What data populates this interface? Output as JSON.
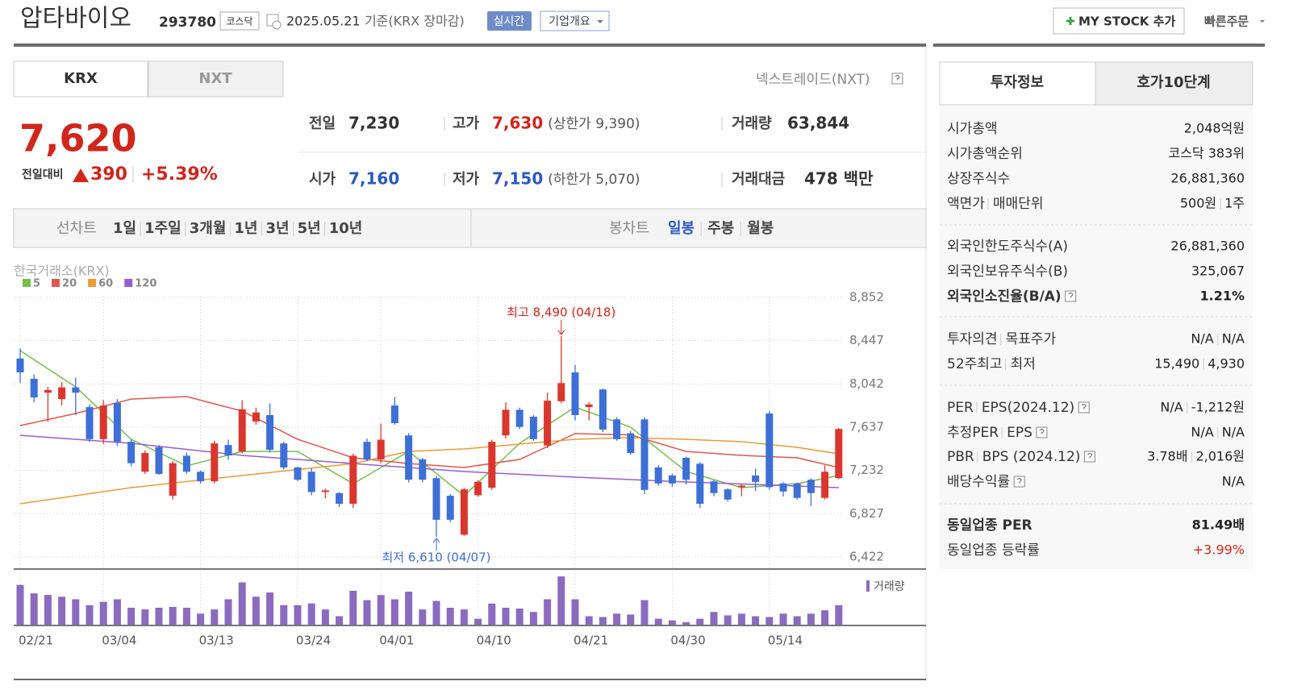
{
  "header": {
    "name": "압타바이오",
    "code": "293780",
    "market": "코스닥",
    "date": "2025.05.21",
    "basis": "기준(KRX 장마감)",
    "realtime": "실시간",
    "company_info": "기업개요",
    "my_stock": "MY STOCK 추가",
    "quick_order": "빠른주문"
  },
  "exchange_tabs": [
    "KRX",
    "NXT"
  ],
  "nxt_link": "넥스트레이드(NXT)",
  "quote": {
    "price": "7,620",
    "change_label": "전일대비",
    "change": "390",
    "change_rate": "+5.39%",
    "items": [
      {
        "label": "전일",
        "value": "7,230"
      },
      {
        "label": "고가",
        "value": "7,630",
        "note": "(상한가 9,390)"
      },
      {
        "label": "거래량",
        "value": "63,844"
      },
      {
        "label": "시가",
        "value": "7,160"
      },
      {
        "label": "저가",
        "value": "7,150",
        "note": "(하한가 5,070)"
      },
      {
        "label": "거래대금",
        "value": "478 백만"
      }
    ]
  },
  "period": {
    "line_label": "선차트",
    "line_options": [
      "1일",
      "1주일",
      "3개월",
      "1년",
      "3년",
      "5년",
      "10년"
    ],
    "candle_label": "봉차트",
    "candle_options": [
      "일봉",
      "주봉",
      "월봉"
    ]
  },
  "chart_data": {
    "type": "candlestick",
    "source": "한국거래소(KRX)",
    "categories": [
      "02/21",
      null,
      null,
      null,
      null,
      null,
      "03/04",
      null,
      null,
      null,
      null,
      null,
      null,
      "03/13",
      null,
      null,
      null,
      null,
      null,
      null,
      "03/24",
      null,
      null,
      null,
      null,
      null,
      "04/01",
      null,
      null,
      null,
      null,
      null,
      null,
      "04/10",
      null,
      null,
      null,
      null,
      null,
      null,
      "04/21",
      null,
      null,
      null,
      null,
      null,
      null,
      "04/30",
      null,
      null,
      null,
      null,
      null,
      null,
      "05/14",
      null,
      null,
      null,
      null,
      null
    ],
    "ohlc": [
      [
        8280,
        8375,
        8050,
        8150
      ],
      [
        8090,
        8130,
        7870,
        7915
      ],
      [
        7960,
        8015,
        7690,
        7985
      ],
      [
        7900,
        8060,
        7840,
        8010
      ],
      [
        8010,
        8100,
        7750,
        7960
      ],
      [
        7825,
        7850,
        7500,
        7525
      ],
      [
        7525,
        7890,
        7480,
        7840
      ],
      [
        7865,
        7900,
        7460,
        7500
      ],
      [
        7500,
        7520,
        7270,
        7300
      ],
      [
        7220,
        7420,
        7200,
        7395
      ],
      [
        7450,
        7470,
        7190,
        7200
      ],
      [
        6995,
        7320,
        6960,
        7300
      ],
      [
        7370,
        7400,
        7200,
        7220
      ],
      [
        7220,
        7230,
        7110,
        7130
      ],
      [
        7130,
        7510,
        7110,
        7485
      ],
      [
        7470,
        7520,
        7330,
        7372
      ],
      [
        7410,
        7890,
        7390,
        7805
      ],
      [
        7690,
        7820,
        7660,
        7775
      ],
      [
        7750,
        7860,
        7400,
        7425
      ],
      [
        7485,
        7500,
        7240,
        7260
      ],
      [
        7260,
        7270,
        7130,
        7145
      ],
      [
        7220,
        7250,
        7000,
        7030
      ],
      [
        7030,
        7060,
        6970,
        7045
      ],
      [
        7020,
        7030,
        6890,
        6920
      ],
      [
        6920,
        7390,
        6880,
        7370
      ],
      [
        7500,
        7530,
        7320,
        7335
      ],
      [
        7335,
        7670,
        7300,
        7520
      ],
      [
        7840,
        7920,
        7660,
        7675
      ],
      [
        7560,
        7580,
        7120,
        7145
      ],
      [
        7335,
        7350,
        7120,
        7145
      ],
      [
        7160,
        7180,
        6610,
        6770
      ],
      [
        6995,
        7010,
        6750,
        6770
      ],
      [
        6630,
        7070,
        6620,
        7055
      ],
      [
        7000,
        7140,
        6985,
        7125
      ],
      [
        7070,
        7520,
        7050,
        7500
      ],
      [
        7560,
        7870,
        7530,
        7800
      ],
      [
        7800,
        7820,
        7620,
        7640
      ],
      [
        7735,
        7750,
        7510,
        7525
      ],
      [
        7465,
        7960,
        7440,
        7885
      ],
      [
        7880,
        8490,
        7860,
        8050
      ],
      [
        8150,
        8220,
        7700,
        7750
      ],
      [
        7825,
        7870,
        7700,
        7850
      ],
      [
        7990,
        8000,
        7590,
        7615
      ],
      [
        7710,
        7730,
        7510,
        7525
      ],
      [
        7580,
        7600,
        7380,
        7395
      ],
      [
        7710,
        7730,
        7010,
        7050
      ],
      [
        7260,
        7280,
        7090,
        7110
      ],
      [
        7185,
        7200,
        7080,
        7110
      ],
      [
        7350,
        7360,
        7100,
        7145
      ],
      [
        7295,
        7310,
        6880,
        6920
      ],
      [
        7130,
        7140,
        6990,
        7020
      ],
      [
        7055,
        7065,
        6940,
        6960
      ],
      [
        7075,
        7100,
        6990,
        7090
      ],
      [
        7185,
        7250,
        7040,
        7125
      ],
      [
        7765,
        7790,
        7050,
        7075
      ],
      [
        7110,
        7120,
        6990,
        7035
      ],
      [
        7110,
        7120,
        6960,
        6975
      ],
      [
        7145,
        7160,
        6900,
        7020
      ],
      [
        6975,
        7280,
        6960,
        7220
      ],
      [
        7160,
        7630,
        7150,
        7620
      ]
    ],
    "up_color": "#d9372d",
    "down_color": "#3d6fd6",
    "ylim": [
      6422,
      8852
    ],
    "yticks": [
      {
        "value": 8852,
        "label": "8,852"
      },
      {
        "value": 8447,
        "label": "8,447"
      },
      {
        "value": 8042,
        "label": "8,042"
      },
      {
        "value": 7637,
        "label": "7,637"
      },
      {
        "value": 7232,
        "label": "7,232"
      },
      {
        "value": 6827,
        "label": "6,827"
      },
      {
        "value": 6422,
        "label": "6,422"
      }
    ],
    "grid": true,
    "ma": [
      {
        "name": "5",
        "color": "#74bf4e",
        "x": [
          0,
          4,
          8,
          12,
          16,
          20,
          24,
          28,
          32,
          36,
          40,
          44,
          48,
          52,
          56,
          59
        ],
        "values": [
          8354,
          8014,
          7524,
          7275,
          7410,
          7410,
          7108,
          7410,
          6995,
          7486,
          7826,
          7637,
          7222,
          7071,
          7108,
          7184
        ]
      },
      {
        "name": "20",
        "color": "#e2574c",
        "x": [
          0,
          4,
          8,
          12,
          16,
          20,
          24,
          28,
          32,
          36,
          40,
          44,
          48,
          52,
          56,
          59
        ],
        "values": [
          7652,
          7765,
          7900,
          7924,
          7788,
          7524,
          7350,
          7297,
          7260,
          7335,
          7577,
          7565,
          7410,
          7373,
          7350,
          7260
        ]
      },
      {
        "name": "60",
        "color": "#eb9a35",
        "x": [
          0,
          8,
          16,
          24,
          28,
          32,
          40,
          44,
          48,
          52,
          56,
          59
        ],
        "values": [
          6920,
          7071,
          7184,
          7297,
          7410,
          7433,
          7524,
          7539,
          7524,
          7501,
          7448,
          7388
        ]
      },
      {
        "name": "120",
        "color": "#9a5ccf",
        "x": [
          0,
          8,
          16,
          24,
          32,
          40,
          48,
          56,
          59
        ],
        "values": [
          7561,
          7486,
          7373,
          7297,
          7222,
          7169,
          7124,
          7086,
          7071
        ]
      }
    ],
    "annotations": [
      {
        "text": "최고 8,490 (04/18)",
        "value": 8490,
        "color": "#d0261b"
      },
      {
        "text": "최저 6,610 (04/07)",
        "value": 6610,
        "color": "#3d6fd6"
      }
    ],
    "volume": {
      "label": "거래량",
      "color": "#8a6bbf",
      "ylim": [
        0,
        60
      ],
      "values": [
        47,
        37,
        35,
        33,
        30,
        23,
        27,
        30,
        20,
        18,
        20,
        21,
        20,
        13,
        18,
        30,
        50,
        33,
        38,
        23,
        23,
        25,
        18,
        10,
        40,
        29,
        35,
        30,
        39,
        18,
        28,
        20,
        18,
        7,
        25,
        20,
        19,
        15,
        30,
        57,
        30,
        10,
        9,
        13,
        12,
        29,
        7,
        5,
        3,
        7,
        15,
        11,
        13,
        10,
        9,
        13,
        10,
        13,
        17,
        23
      ]
    }
  },
  "sidebar": {
    "tabs": [
      "투자정보",
      "호가10단계"
    ],
    "groups": [
      [
        {
          "label": [
            "시가총액"
          ],
          "value": [
            "2,048억원"
          ]
        },
        {
          "label": [
            "시가총액순위"
          ],
          "value": [
            "코스닥 383위"
          ]
        },
        {
          "label": [
            "상장주식수"
          ],
          "value": [
            "26,881,360"
          ]
        },
        {
          "label": [
            "액면가",
            "매매단위"
          ],
          "value": [
            "500원",
            "1주"
          ]
        }
      ],
      [
        {
          "label": [
            "외국인한도주식수(A)"
          ],
          "value": [
            "26,881,360"
          ]
        },
        {
          "label": [
            "외국인보유주식수(B)"
          ],
          "value": [
            "325,067"
          ]
        },
        {
          "label": [
            "외국인소진율(B/A)"
          ],
          "value": [
            "1.21%"
          ],
          "help": true,
          "strong": true
        }
      ],
      [
        {
          "label": [
            "투자의견",
            "목표주가"
          ],
          "value": [
            "N/A",
            "N/A"
          ]
        },
        {
          "label": [
            "52주최고",
            "최저"
          ],
          "value": [
            "15,490",
            "4,930"
          ]
        }
      ],
      [
        {
          "label": [
            "PER",
            "EPS(2024.12)"
          ],
          "value": [
            "N/A",
            "-1,212원"
          ],
          "help": true
        },
        {
          "label": [
            "추정PER",
            "EPS"
          ],
          "value": [
            "N/A",
            "N/A"
          ],
          "help": true
        },
        {
          "label": [
            "PBR",
            "BPS (2024.12)"
          ],
          "value": [
            "3.78배",
            "2,016원"
          ],
          "help": true
        },
        {
          "label": [
            "배당수익률"
          ],
          "value": [
            "N/A"
          ],
          "help": true
        }
      ],
      [
        {
          "label": [
            "동일업종 PER"
          ],
          "value": [
            "81.49배"
          ],
          "strong": true
        },
        {
          "label": [
            "동일업종 등락률"
          ],
          "value": [
            "+3.99%"
          ],
          "color": "#d0261b"
        }
      ]
    ]
  }
}
